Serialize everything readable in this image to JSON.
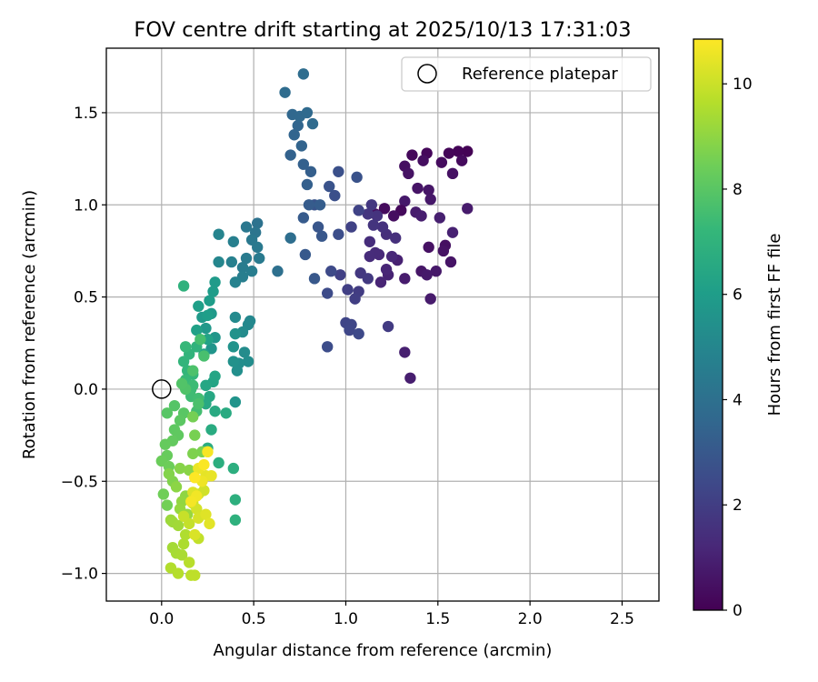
{
  "chart_data": {
    "type": "scatter",
    "title": "FOV centre drift starting at 2025/10/13 17:31:03",
    "xlabel": "Angular distance from reference (arcmin)",
    "ylabel": "Rotation from reference (arcmin)",
    "xlim": [
      -0.3,
      2.7
    ],
    "ylim": [
      -1.15,
      1.85
    ],
    "xticks": [
      0.0,
      0.5,
      1.0,
      1.5,
      2.0,
      2.5
    ],
    "xtick_labels": [
      "0.0",
      "0.5",
      "1.0",
      "1.5",
      "2.0",
      "2.5"
    ],
    "yticks": [
      -1.0,
      -0.5,
      0.0,
      0.5,
      1.0,
      1.5
    ],
    "ytick_labels": [
      "−1.0",
      "−0.5",
      "0.0",
      "0.5",
      "1.0",
      "1.5"
    ],
    "grid": true,
    "legend": {
      "position": "upper-right",
      "entries": [
        {
          "label": "Reference platepar",
          "marker": "open-circle",
          "color": "#000000"
        }
      ]
    },
    "reference_point": {
      "x": 0.0,
      "y": 0.0
    },
    "colorbar": {
      "label": "Hours from first FF file",
      "colormap": "viridis",
      "range": [
        0,
        10.85
      ],
      "ticks": [
        0,
        2,
        4,
        6,
        8,
        10
      ],
      "tick_labels": [
        "0",
        "2",
        "4",
        "6",
        "8",
        "10"
      ],
      "stops": [
        "#440154",
        "#482878",
        "#3e4989",
        "#31688e",
        "#26828e",
        "#1f9e89",
        "#35b779",
        "#6ece58",
        "#b5de2b",
        "#fde725"
      ]
    },
    "points": [
      [
        1.66,
        1.29,
        0.05
      ],
      [
        1.61,
        1.29,
        0.1
      ],
      [
        1.56,
        1.28,
        0.15
      ],
      [
        1.44,
        1.28,
        0.2
      ],
      [
        1.36,
        1.27,
        0.25
      ],
      [
        1.63,
        1.24,
        0.3
      ],
      [
        1.52,
        1.23,
        0.35
      ],
      [
        1.42,
        1.24,
        0.4
      ],
      [
        1.32,
        1.21,
        0.45
      ],
      [
        1.58,
        1.17,
        0.5
      ],
      [
        1.34,
        1.17,
        0.55
      ],
      [
        1.39,
        1.09,
        0.6
      ],
      [
        1.45,
        1.08,
        0.65
      ],
      [
        1.46,
        1.03,
        0.7
      ],
      [
        1.32,
        1.02,
        0.75
      ],
      [
        1.66,
        0.98,
        0.8
      ],
      [
        1.38,
        0.96,
        0.85
      ],
      [
        1.41,
        0.94,
        0.9
      ],
      [
        1.51,
        0.93,
        0.95
      ],
      [
        1.58,
        0.85,
        1.0
      ],
      [
        1.3,
        0.97,
        0.25
      ],
      [
        1.21,
        0.98,
        0.3
      ],
      [
        1.16,
        0.95,
        0.35
      ],
      [
        1.26,
        0.94,
        0.4
      ],
      [
        1.54,
        0.78,
        0.45
      ],
      [
        1.45,
        0.77,
        0.5
      ],
      [
        1.53,
        0.75,
        0.55
      ],
      [
        1.57,
        0.69,
        0.6
      ],
      [
        1.41,
        0.64,
        0.65
      ],
      [
        1.49,
        0.64,
        0.7
      ],
      [
        1.44,
        0.62,
        0.75
      ],
      [
        1.46,
        0.49,
        0.8
      ],
      [
        1.32,
        0.6,
        0.85
      ],
      [
        1.35,
        0.06,
        0.9
      ],
      [
        1.32,
        0.2,
        0.95
      ],
      [
        1.28,
        0.7,
        1.0
      ],
      [
        1.23,
        0.62,
        1.05
      ],
      [
        1.19,
        0.58,
        1.1
      ],
      [
        1.22,
        0.65,
        1.15
      ],
      [
        1.25,
        0.72,
        1.2
      ],
      [
        1.18,
        0.73,
        1.25
      ],
      [
        1.16,
        0.74,
        1.3
      ],
      [
        1.13,
        0.72,
        1.35
      ],
      [
        1.13,
        0.8,
        1.4
      ],
      [
        1.22,
        0.84,
        1.45
      ],
      [
        1.27,
        0.82,
        1.5
      ],
      [
        1.2,
        0.88,
        1.55
      ],
      [
        1.17,
        0.94,
        1.6
      ],
      [
        1.15,
        0.89,
        1.65
      ],
      [
        1.12,
        0.95,
        1.7
      ],
      [
        1.14,
        1.0,
        1.75
      ],
      [
        1.08,
        0.63,
        1.8
      ],
      [
        1.12,
        0.6,
        1.85
      ],
      [
        1.23,
        0.34,
        1.9
      ],
      [
        1.07,
        0.53,
        1.95
      ],
      [
        1.05,
        0.49,
        2.0
      ],
      [
        1.01,
        0.54,
        2.05
      ],
      [
        0.97,
        0.62,
        2.1
      ],
      [
        1.03,
        0.88,
        2.15
      ],
      [
        1.07,
        0.97,
        2.2
      ],
      [
        1.0,
        0.36,
        2.25
      ],
      [
        1.03,
        0.35,
        2.3
      ],
      [
        1.02,
        0.32,
        2.35
      ],
      [
        1.07,
        0.3,
        2.4
      ],
      [
        0.92,
        0.64,
        2.45
      ],
      [
        0.9,
        0.52,
        2.5
      ],
      [
        0.9,
        0.23,
        2.55
      ],
      [
        0.96,
        0.84,
        2.6
      ],
      [
        0.94,
        1.05,
        2.65
      ],
      [
        0.96,
        1.18,
        2.7
      ],
      [
        1.06,
        1.15,
        2.75
      ],
      [
        0.91,
        1.1,
        2.8
      ],
      [
        0.83,
        1.0,
        2.85
      ],
      [
        0.85,
        0.88,
        2.9
      ],
      [
        0.87,
        0.83,
        2.95
      ],
      [
        0.83,
        0.6,
        3.0
      ],
      [
        0.78,
        0.73,
        3.05
      ],
      [
        0.77,
        0.93,
        3.1
      ],
      [
        0.8,
        1.0,
        3.15
      ],
      [
        0.86,
        1.0,
        3.2
      ],
      [
        0.81,
        1.18,
        3.25
      ],
      [
        0.79,
        1.11,
        3.3
      ],
      [
        0.77,
        1.22,
        3.35
      ],
      [
        0.7,
        1.27,
        3.4
      ],
      [
        0.76,
        1.32,
        3.45
      ],
      [
        0.72,
        1.38,
        3.5
      ],
      [
        0.74,
        1.43,
        3.55
      ],
      [
        0.71,
        1.49,
        3.6
      ],
      [
        0.75,
        1.48,
        3.65
      ],
      [
        0.79,
        1.5,
        3.7
      ],
      [
        0.82,
        1.44,
        3.75
      ],
      [
        0.67,
        1.61,
        3.8
      ],
      [
        0.77,
        1.71,
        3.85
      ],
      [
        0.7,
        0.82,
        3.9
      ],
      [
        0.63,
        0.64,
        4.0
      ],
      [
        0.52,
        0.9,
        4.1
      ],
      [
        0.51,
        0.85,
        4.2
      ],
      [
        0.46,
        0.88,
        4.3
      ],
      [
        0.49,
        0.81,
        4.35
      ],
      [
        0.52,
        0.77,
        4.4
      ],
      [
        0.53,
        0.71,
        4.45
      ],
      [
        0.46,
        0.71,
        4.5
      ],
      [
        0.44,
        0.66,
        4.55
      ],
      [
        0.49,
        0.64,
        4.6
      ],
      [
        0.44,
        0.61,
        4.65
      ],
      [
        0.39,
        0.8,
        4.7
      ],
      [
        0.38,
        0.69,
        4.75
      ],
      [
        0.4,
        0.58,
        4.8
      ],
      [
        0.31,
        0.84,
        4.9
      ],
      [
        0.31,
        0.69,
        5.0
      ],
      [
        0.48,
        0.37,
        5.05
      ],
      [
        0.47,
        0.35,
        5.1
      ],
      [
        0.4,
        0.39,
        5.15
      ],
      [
        0.44,
        0.31,
        5.2
      ],
      [
        0.45,
        0.2,
        5.25
      ],
      [
        0.47,
        0.15,
        5.3
      ],
      [
        0.42,
        0.14,
        5.35
      ],
      [
        0.41,
        0.1,
        5.4
      ],
      [
        0.39,
        0.15,
        5.45
      ],
      [
        0.4,
        0.3,
        5.5
      ],
      [
        0.39,
        0.23,
        5.55
      ],
      [
        0.4,
        -0.07,
        5.6
      ],
      [
        0.27,
        0.22,
        5.65
      ],
      [
        0.29,
        0.28,
        5.7
      ],
      [
        0.24,
        0.33,
        5.75
      ],
      [
        0.27,
        0.41,
        5.8
      ],
      [
        0.22,
        0.39,
        5.85
      ],
      [
        0.29,
        0.58,
        5.9
      ],
      [
        0.28,
        0.53,
        5.95
      ],
      [
        0.26,
        0.48,
        6.0
      ],
      [
        0.25,
        0.4,
        6.05
      ],
      [
        0.2,
        0.45,
        6.1
      ],
      [
        0.19,
        0.32,
        6.15
      ],
      [
        0.25,
        0.27,
        6.2
      ],
      [
        0.23,
        0.19,
        6.25
      ],
      [
        0.28,
        0.04,
        6.3
      ],
      [
        0.29,
        0.07,
        6.35
      ],
      [
        0.24,
        0.02,
        6.4
      ],
      [
        0.26,
        -0.04,
        6.45
      ],
      [
        0.24,
        -0.08,
        6.5
      ],
      [
        0.29,
        -0.12,
        6.55
      ],
      [
        0.35,
        -0.13,
        6.6
      ],
      [
        0.27,
        -0.22,
        6.65
      ],
      [
        0.25,
        -0.32,
        6.7
      ],
      [
        0.31,
        -0.4,
        6.75
      ],
      [
        0.39,
        -0.43,
        6.8
      ],
      [
        0.4,
        -0.6,
        6.85
      ],
      [
        0.4,
        -0.71,
        6.9
      ],
      [
        0.12,
        0.56,
        6.95
      ],
      [
        0.19,
        0.23,
        7.0
      ],
      [
        0.15,
        0.19,
        7.05
      ],
      [
        0.12,
        0.15,
        7.1
      ],
      [
        0.14,
        0.1,
        7.15
      ],
      [
        0.17,
        0.08,
        7.2
      ],
      [
        0.13,
        0.23,
        7.25
      ],
      [
        0.13,
        0.05,
        7.3
      ],
      [
        0.16,
        0.0,
        7.35
      ],
      [
        0.17,
        0.02,
        7.4
      ],
      [
        0.16,
        -0.04,
        7.45
      ],
      [
        0.2,
        -0.05,
        7.5
      ],
      [
        0.19,
        -0.12,
        7.55
      ],
      [
        0.21,
        0.27,
        7.6
      ],
      [
        0.23,
        0.18,
        7.65
      ],
      [
        0.2,
        -0.08,
        7.7
      ],
      [
        0.17,
        0.1,
        7.75
      ],
      [
        0.13,
        0.0,
        7.8
      ],
      [
        0.11,
        0.03,
        7.85
      ],
      [
        0.07,
        -0.09,
        7.9
      ],
      [
        0.03,
        -0.13,
        7.95
      ],
      [
        0.12,
        -0.13,
        8.0
      ],
      [
        0.1,
        -0.17,
        8.05
      ],
      [
        0.07,
        -0.22,
        8.1
      ],
      [
        0.09,
        -0.25,
        8.15
      ],
      [
        0.06,
        -0.28,
        8.2
      ],
      [
        0.02,
        -0.3,
        8.25
      ],
      [
        0.03,
        -0.36,
        8.3
      ],
      [
        0.0,
        -0.39,
        8.35
      ],
      [
        0.04,
        -0.42,
        8.4
      ],
      [
        0.01,
        -0.57,
        8.45
      ],
      [
        0.03,
        -0.63,
        8.5
      ],
      [
        0.17,
        -0.15,
        8.55
      ],
      [
        0.18,
        -0.25,
        8.6
      ],
      [
        0.22,
        -0.34,
        8.65
      ],
      [
        0.17,
        -0.35,
        8.7
      ],
      [
        0.06,
        -0.5,
        8.75
      ],
      [
        0.04,
        -0.46,
        8.8
      ],
      [
        0.1,
        -0.43,
        8.85
      ],
      [
        0.15,
        -0.44,
        8.9
      ],
      [
        0.08,
        -0.53,
        8.95
      ],
      [
        0.13,
        -0.58,
        9.0
      ],
      [
        0.11,
        -0.61,
        9.05
      ],
      [
        0.1,
        -0.65,
        9.1
      ],
      [
        0.14,
        -0.68,
        9.15
      ],
      [
        0.05,
        -0.71,
        9.2
      ],
      [
        0.06,
        -0.72,
        9.25
      ],
      [
        0.09,
        -0.74,
        9.3
      ],
      [
        0.06,
        -0.86,
        9.35
      ],
      [
        0.08,
        -0.89,
        9.4
      ],
      [
        0.11,
        -0.9,
        9.45
      ],
      [
        0.12,
        -0.84,
        9.5
      ],
      [
        0.13,
        -0.79,
        9.55
      ],
      [
        0.05,
        -0.97,
        9.6
      ],
      [
        0.09,
        -1.0,
        9.65
      ],
      [
        0.15,
        -0.94,
        9.7
      ],
      [
        0.16,
        -1.01,
        9.75
      ],
      [
        0.18,
        -1.01,
        9.8
      ],
      [
        0.2,
        -0.81,
        9.85
      ],
      [
        0.15,
        -0.73,
        9.9
      ],
      [
        0.12,
        -0.69,
        9.95
      ],
      [
        0.17,
        -0.62,
        10.0
      ],
      [
        0.2,
        -0.57,
        10.05
      ],
      [
        0.23,
        -0.55,
        10.1
      ],
      [
        0.19,
        -0.65,
        10.15
      ],
      [
        0.2,
        -0.7,
        10.2
      ],
      [
        0.18,
        -0.79,
        10.25
      ],
      [
        0.17,
        -0.56,
        10.3
      ],
      [
        0.24,
        -0.68,
        10.35
      ],
      [
        0.26,
        -0.73,
        10.4
      ],
      [
        0.24,
        -0.47,
        10.45
      ],
      [
        0.27,
        -0.47,
        10.5
      ],
      [
        0.2,
        -0.43,
        10.55
      ],
      [
        0.22,
        -0.5,
        10.6
      ],
      [
        0.19,
        -0.58,
        10.65
      ],
      [
        0.16,
        -0.61,
        10.7
      ],
      [
        0.25,
        -0.34,
        10.75
      ],
      [
        0.23,
        -0.41,
        10.8
      ],
      [
        0.18,
        -0.48,
        10.85
      ]
    ]
  }
}
